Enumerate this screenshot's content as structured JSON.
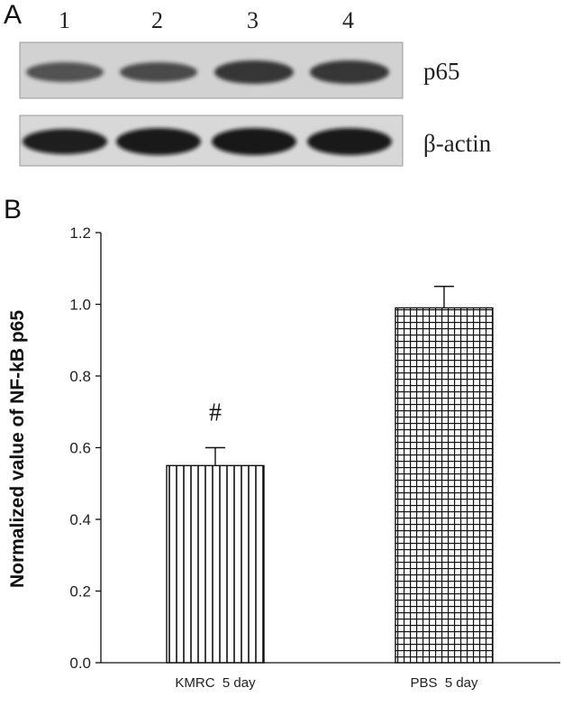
{
  "panels": {
    "a": "A",
    "b": "B"
  },
  "blot": {
    "lanes": [
      "1",
      "2",
      "3",
      "4"
    ],
    "rows": [
      {
        "label": "p65"
      },
      {
        "label": "β-actin"
      }
    ]
  },
  "chart_data": {
    "type": "bar",
    "categories": [
      "KMRC  5 day",
      "PBS  5 day"
    ],
    "series": [
      {
        "values": [
          0.55,
          0.99
        ],
        "errors": [
          0.05,
          0.06
        ],
        "patterns": [
          "vertical-lines",
          "grid"
        ]
      }
    ],
    "annotations": [
      {
        "category": "KMRC  5 day",
        "text": "#"
      }
    ],
    "ylabel": "Normalized value of NF-kB  p65",
    "xlabel": "",
    "ylim": [
      0.0,
      1.2
    ],
    "yticks": [
      "0.0",
      "0.2",
      "0.4",
      "0.6",
      "0.8",
      "1.0",
      "1.2"
    ],
    "grid": false,
    "colors": {
      "bar_stroke": "#111111",
      "bar_fill": "#ffffff"
    }
  }
}
